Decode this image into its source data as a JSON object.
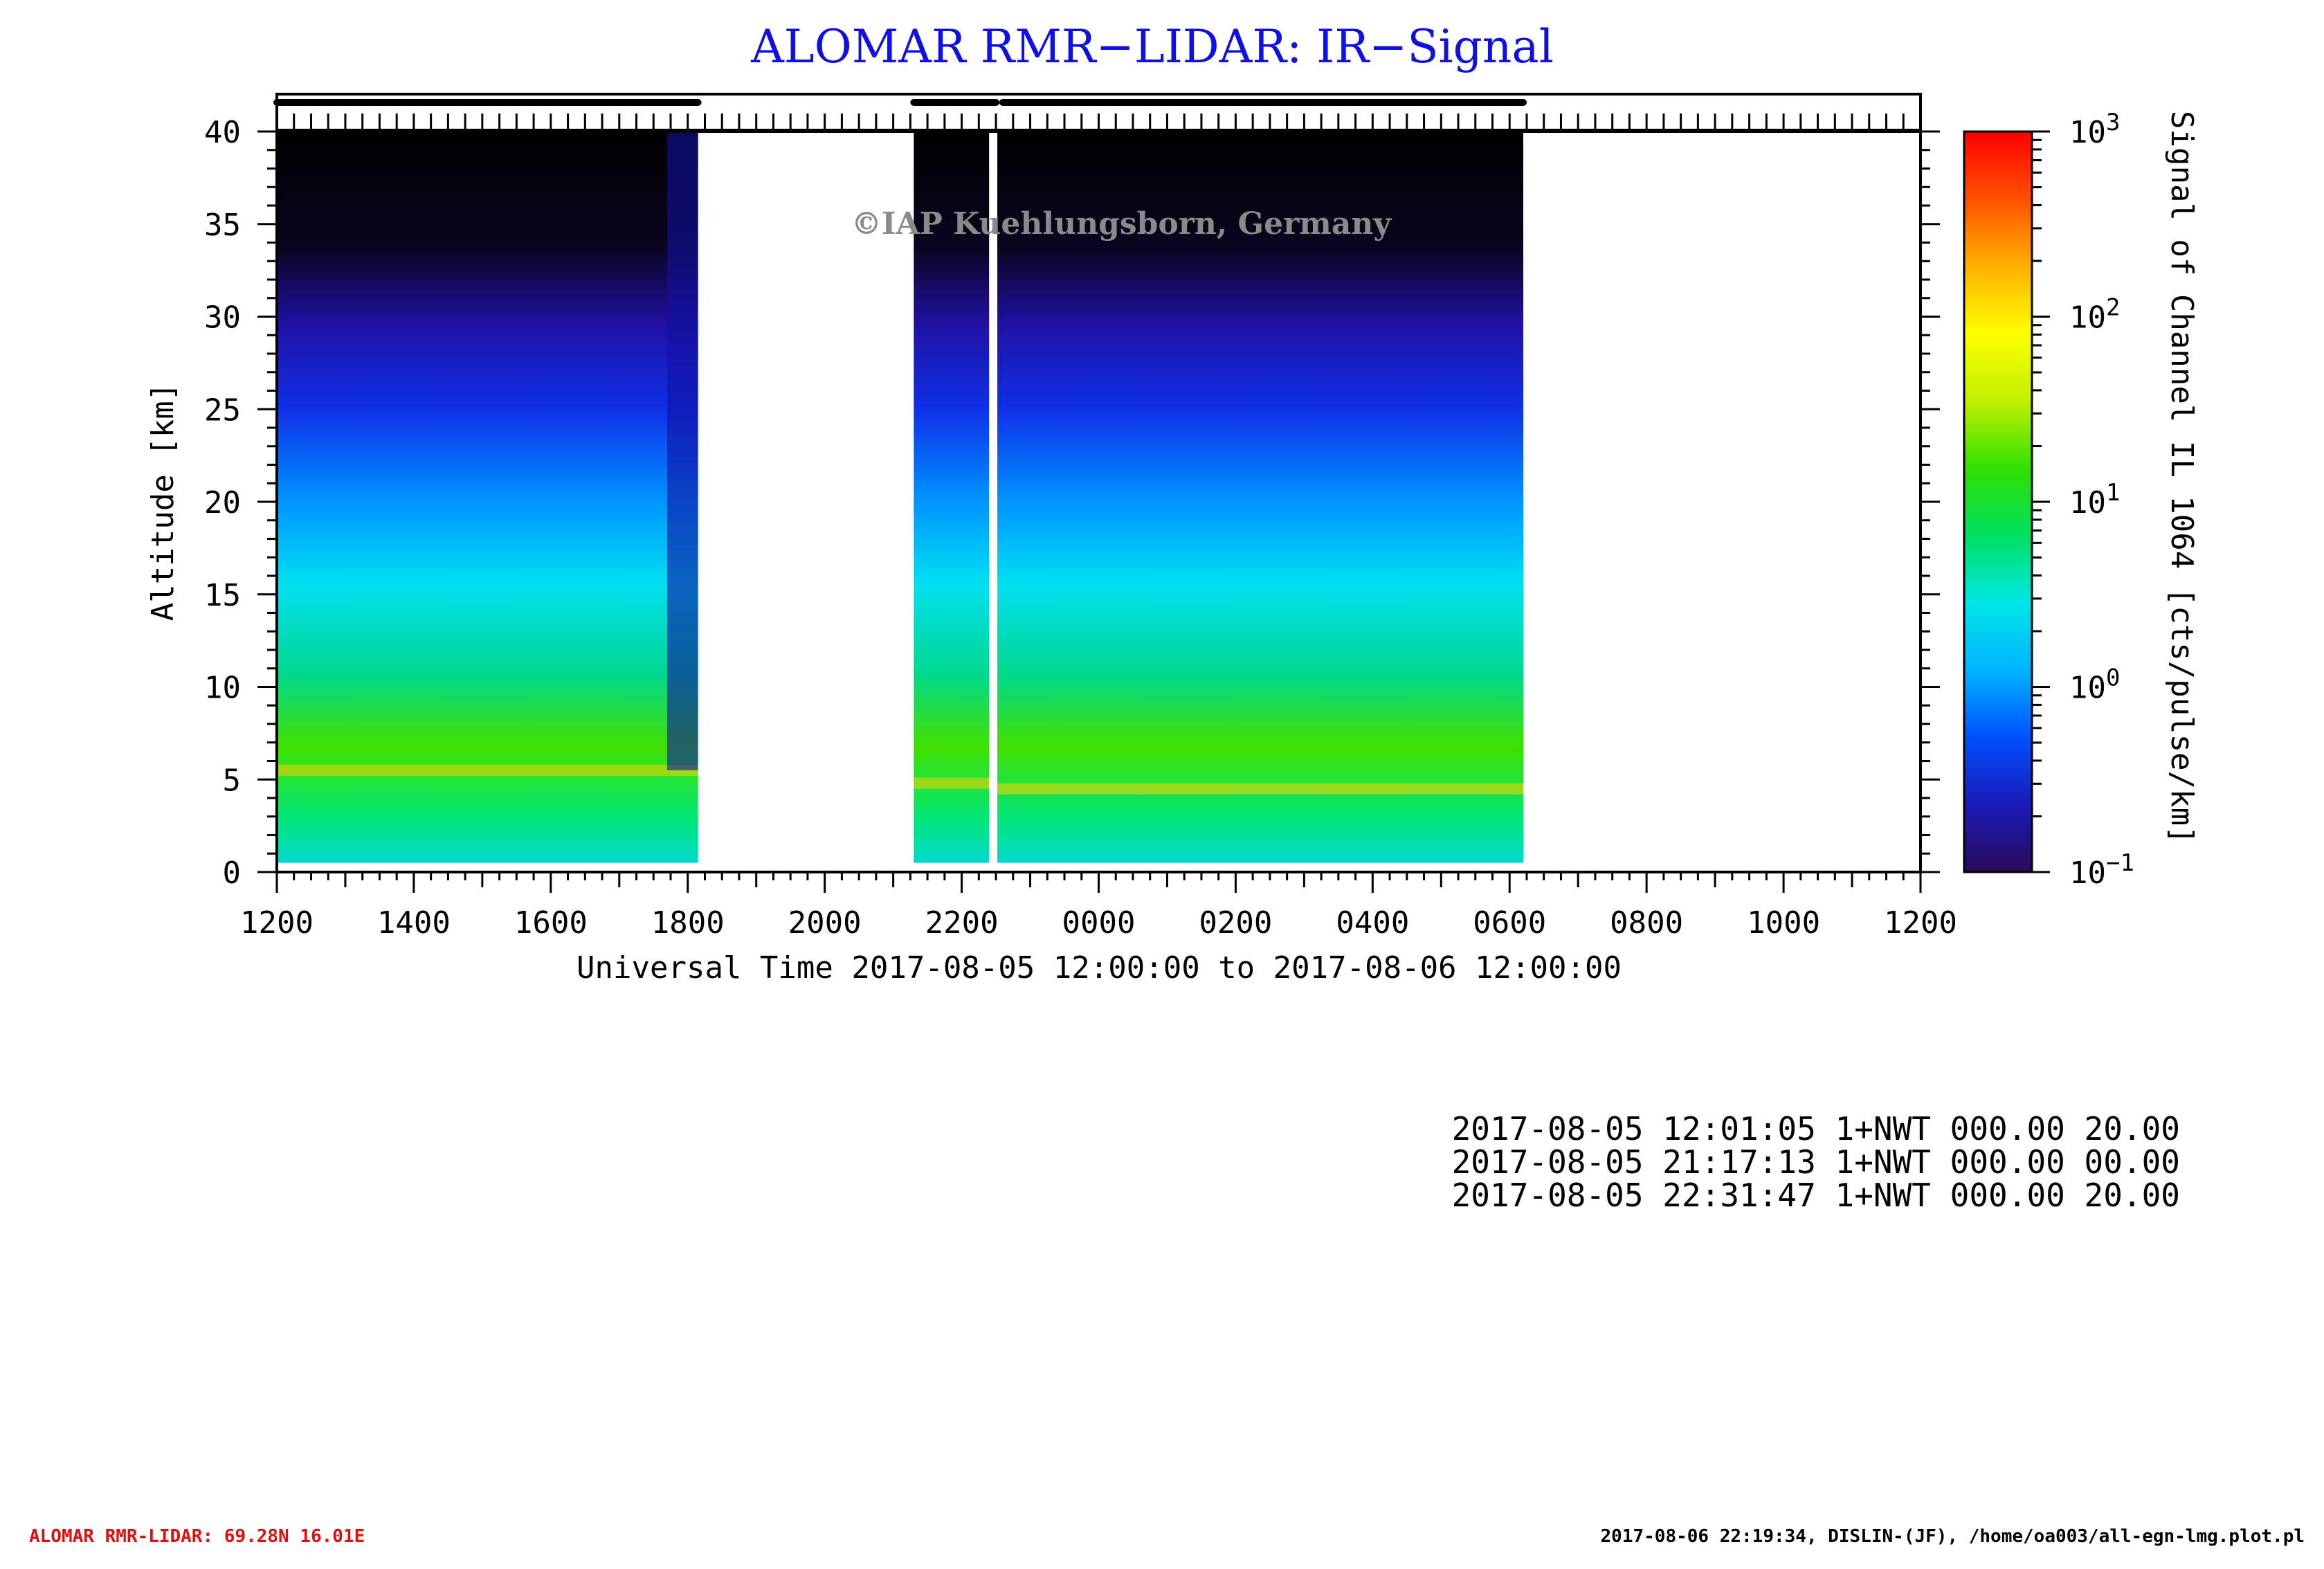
{
  "chart_data": {
    "type": "heatmap",
    "title": "ALOMAR RMR−LIDAR: IR−Signal",
    "watermark": "©IAP Kuehlungsborn, Germany",
    "xlabel": "Universal Time 2017-08-05 12:00:00 to 2017-08-06 12:00:00",
    "ylabel": "Altitude [km]",
    "x_tick_labels": [
      "1200",
      "1400",
      "1600",
      "1800",
      "2000",
      "2200",
      "0000",
      "0200",
      "0400",
      "0600",
      "0800",
      "1000",
      "1200"
    ],
    "x_range_hours": [
      0,
      24
    ],
    "y_ticks": [
      0,
      5,
      10,
      15,
      20,
      25,
      30,
      35,
      40
    ],
    "y_tick_labels": [
      "0",
      "5",
      "10",
      "15",
      "20",
      "25",
      "30",
      "35",
      "40"
    ],
    "ylim": [
      0,
      40
    ],
    "data_top_km": 40,
    "data_bottom_km": 0.5,
    "colorbar": {
      "label": "Signal of Channel IL 1064 [cts/pulse/km]",
      "scale": "log",
      "range": [
        0.1,
        1000
      ],
      "tick_labels": [
        {
          "base": "10",
          "exp": "3",
          "value": 1000
        },
        {
          "base": "10",
          "exp": "2",
          "value": 100
        },
        {
          "base": "10",
          "exp": "1",
          "value": 10
        },
        {
          "base": "10",
          "exp": "0",
          "value": 1
        },
        {
          "base": "10",
          "exp": "−1",
          "value": 0.1
        }
      ],
      "colors": [
        "#2a0a5a",
        "#1a1ab8",
        "#0050ff",
        "#00b4ff",
        "#00e6e6",
        "#00e060",
        "#30e000",
        "#c0f000",
        "#ffff00",
        "#ffb000",
        "#ff5000",
        "#ff0000"
      ]
    },
    "measurement_periods_hours": [
      {
        "start": 0.0,
        "end": 6.15,
        "cloud_top_km": 5.5,
        "decay_start": 5.7
      },
      {
        "start": 9.3,
        "end": 10.4,
        "cloud_top_km": 4.8,
        "decay_start": null
      },
      {
        "start": 10.52,
        "end": 18.2,
        "cloud_top_km": 4.5,
        "decay_start": null
      }
    ],
    "status_bar_segments_hours": [
      [
        0.0,
        6.15
      ],
      [
        9.3,
        10.5
      ],
      [
        10.6,
        18.2
      ]
    ],
    "colors": {
      "title": "#1010e0",
      "footer_left": "#e01010",
      "axis": "#000000"
    }
  },
  "run_log": [
    "2017-08-05 12:01:05 1+NWT 000.00 20.00",
    "2017-08-05 21:17:13 1+NWT 000.00 00.00",
    "2017-08-05 22:31:47 1+NWT 000.00 20.00"
  ],
  "footer": {
    "left": "ALOMAR RMR-LIDAR: 69.28N 16.01E",
    "right": "2017-08-06 22:19:34, DISLIN-(JF), /home/oa003/all-egn-lmg.plot.pl"
  }
}
